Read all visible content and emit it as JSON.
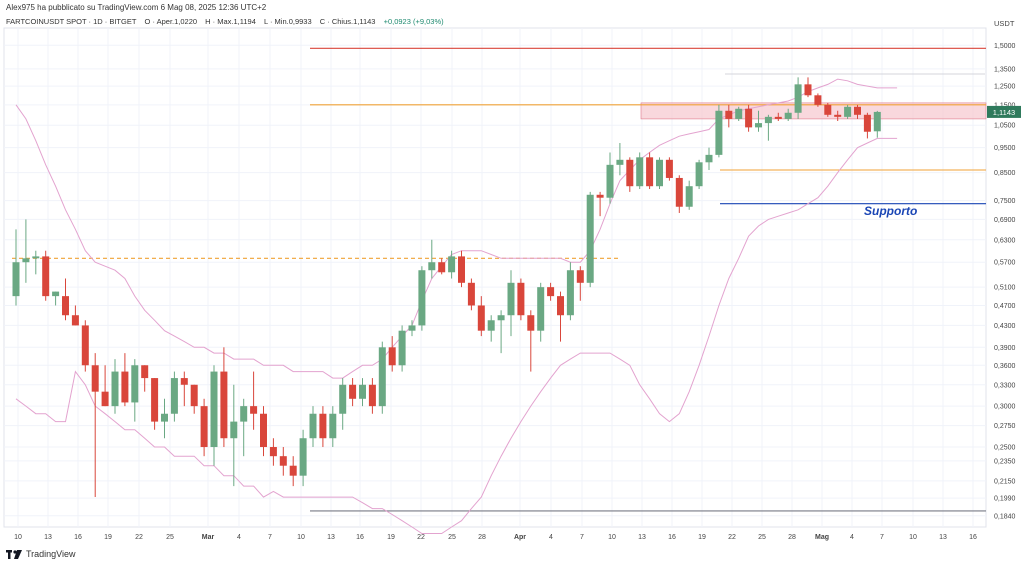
{
  "header": {
    "publisher": "Alex975 ha pubblicato su TradingView.com 6 Mag 08, 2025 12:36 UTC+2",
    "symbol": "FARTCOINUSDT SPOT · 1D · BITGET",
    "open": "O · Aper.1,0220",
    "high": "H · Max.1,1194",
    "low": "L · Min.0,9933",
    "close": "C · Chius.1,1143",
    "change": "+0,0923 (+9,03%)",
    "currency": "USDT"
  },
  "footer": {
    "brand": "TradingView"
  },
  "annotations": {
    "support_label": "Supporto"
  },
  "colors": {
    "up": "#6aa883",
    "down": "#d9463b",
    "band": "#e3a3cf",
    "res_line": "#d9463b",
    "orange_line": "#f0a236",
    "support_line": "#1a46b5",
    "grey_line": "#787b86",
    "zone_fill": "#f7c7ce"
  },
  "chart_data": {
    "type": "candlestick",
    "x_dates": [
      "10",
      "13",
      "16",
      "19",
      "22",
      "25",
      "Mar",
      "4",
      "7",
      "10",
      "13",
      "16",
      "19",
      "22",
      "25",
      "28",
      "Apr",
      "4",
      "7",
      "10",
      "13",
      "16",
      "19",
      "22",
      "25",
      "28",
      "Mag",
      "4",
      "7",
      "10",
      "13",
      "16"
    ],
    "y_ticks": [
      "1,5000",
      "1,3500",
      "1,2500",
      "1,1500",
      "1,0500",
      "0,9500",
      "0,8500",
      "0,7500",
      "0,6900",
      "0,6300",
      "0,5700",
      "0,5100",
      "0,4700",
      "0,4300",
      "0,3900",
      "0,3600",
      "0,3300",
      "0,3000",
      "0,2750",
      "0,2500",
      "0,2350",
      "0,2150",
      "0,1990",
      "0,1840"
    ],
    "current_price": "1,1143",
    "levels": [
      {
        "name": "resistance-top",
        "value": 1.48,
        "color": "#d9463b"
      },
      {
        "name": "orange-upper",
        "value": 1.15,
        "color": "#f0a236"
      },
      {
        "name": "orange-mid",
        "value": 0.86,
        "color": "#f0a236"
      },
      {
        "name": "support",
        "value": 0.74,
        "color": "#1a46b5"
      },
      {
        "name": "orange-dashed",
        "value": 0.58,
        "color": "#f0a236"
      },
      {
        "name": "bottom",
        "value": 0.188,
        "color": "#787b86"
      }
    ],
    "zone": {
      "low": 1.08,
      "high": 1.16
    },
    "candles": [
      {
        "o": 0.49,
        "h": 0.66,
        "l": 0.47,
        "c": 0.57
      },
      {
        "o": 0.57,
        "h": 0.69,
        "l": 0.52,
        "c": 0.58
      },
      {
        "o": 0.58,
        "h": 0.6,
        "l": 0.54,
        "c": 0.585
      },
      {
        "o": 0.585,
        "h": 0.6,
        "l": 0.48,
        "c": 0.49
      },
      {
        "o": 0.49,
        "h": 0.5,
        "l": 0.47,
        "c": 0.5
      },
      {
        "o": 0.49,
        "h": 0.53,
        "l": 0.44,
        "c": 0.45
      },
      {
        "o": 0.45,
        "h": 0.47,
        "l": 0.43,
        "c": 0.43
      },
      {
        "o": 0.43,
        "h": 0.44,
        "l": 0.35,
        "c": 0.36
      },
      {
        "o": 0.36,
        "h": 0.38,
        "l": 0.2,
        "c": 0.32
      },
      {
        "o": 0.32,
        "h": 0.36,
        "l": 0.3,
        "c": 0.3
      },
      {
        "o": 0.3,
        "h": 0.37,
        "l": 0.29,
        "c": 0.35
      },
      {
        "o": 0.35,
        "h": 0.38,
        "l": 0.3,
        "c": 0.305
      },
      {
        "o": 0.305,
        "h": 0.37,
        "l": 0.28,
        "c": 0.36
      },
      {
        "o": 0.36,
        "h": 0.36,
        "l": 0.32,
        "c": 0.34
      },
      {
        "o": 0.34,
        "h": 0.34,
        "l": 0.27,
        "c": 0.28
      },
      {
        "o": 0.28,
        "h": 0.31,
        "l": 0.26,
        "c": 0.29
      },
      {
        "o": 0.29,
        "h": 0.35,
        "l": 0.28,
        "c": 0.34
      },
      {
        "o": 0.34,
        "h": 0.35,
        "l": 0.3,
        "c": 0.33
      },
      {
        "o": 0.33,
        "h": 0.33,
        "l": 0.29,
        "c": 0.3
      },
      {
        "o": 0.3,
        "h": 0.31,
        "l": 0.24,
        "c": 0.25
      },
      {
        "o": 0.25,
        "h": 0.36,
        "l": 0.23,
        "c": 0.35
      },
      {
        "o": 0.35,
        "h": 0.39,
        "l": 0.25,
        "c": 0.26
      },
      {
        "o": 0.26,
        "h": 0.33,
        "l": 0.21,
        "c": 0.28
      },
      {
        "o": 0.28,
        "h": 0.31,
        "l": 0.24,
        "c": 0.3
      },
      {
        "o": 0.3,
        "h": 0.35,
        "l": 0.27,
        "c": 0.29
      },
      {
        "o": 0.29,
        "h": 0.3,
        "l": 0.24,
        "c": 0.25
      },
      {
        "o": 0.25,
        "h": 0.26,
        "l": 0.23,
        "c": 0.24
      },
      {
        "o": 0.24,
        "h": 0.25,
        "l": 0.22,
        "c": 0.23
      },
      {
        "o": 0.23,
        "h": 0.24,
        "l": 0.21,
        "c": 0.22
      },
      {
        "o": 0.22,
        "h": 0.27,
        "l": 0.21,
        "c": 0.26
      },
      {
        "o": 0.26,
        "h": 0.3,
        "l": 0.25,
        "c": 0.29
      },
      {
        "o": 0.29,
        "h": 0.3,
        "l": 0.25,
        "c": 0.26
      },
      {
        "o": 0.26,
        "h": 0.3,
        "l": 0.25,
        "c": 0.29
      },
      {
        "o": 0.29,
        "h": 0.34,
        "l": 0.27,
        "c": 0.33
      },
      {
        "o": 0.33,
        "h": 0.34,
        "l": 0.3,
        "c": 0.31
      },
      {
        "o": 0.31,
        "h": 0.34,
        "l": 0.3,
        "c": 0.33
      },
      {
        "o": 0.33,
        "h": 0.34,
        "l": 0.29,
        "c": 0.3
      },
      {
        "o": 0.3,
        "h": 0.4,
        "l": 0.29,
        "c": 0.39
      },
      {
        "o": 0.39,
        "h": 0.41,
        "l": 0.35,
        "c": 0.36
      },
      {
        "o": 0.36,
        "h": 0.43,
        "l": 0.35,
        "c": 0.42
      },
      {
        "o": 0.42,
        "h": 0.44,
        "l": 0.41,
        "c": 0.43
      },
      {
        "o": 0.43,
        "h": 0.56,
        "l": 0.42,
        "c": 0.55
      },
      {
        "o": 0.55,
        "h": 0.63,
        "l": 0.53,
        "c": 0.57
      },
      {
        "o": 0.57,
        "h": 0.58,
        "l": 0.54,
        "c": 0.545
      },
      {
        "o": 0.545,
        "h": 0.6,
        "l": 0.53,
        "c": 0.585
      },
      {
        "o": 0.585,
        "h": 0.6,
        "l": 0.51,
        "c": 0.52
      },
      {
        "o": 0.52,
        "h": 0.53,
        "l": 0.46,
        "c": 0.47
      },
      {
        "o": 0.47,
        "h": 0.49,
        "l": 0.41,
        "c": 0.42
      },
      {
        "o": 0.42,
        "h": 0.45,
        "l": 0.4,
        "c": 0.44
      },
      {
        "o": 0.44,
        "h": 0.46,
        "l": 0.38,
        "c": 0.45
      },
      {
        "o": 0.45,
        "h": 0.55,
        "l": 0.41,
        "c": 0.52
      },
      {
        "o": 0.52,
        "h": 0.53,
        "l": 0.44,
        "c": 0.45
      },
      {
        "o": 0.45,
        "h": 0.46,
        "l": 0.35,
        "c": 0.42
      },
      {
        "o": 0.42,
        "h": 0.52,
        "l": 0.4,
        "c": 0.51
      },
      {
        "o": 0.51,
        "h": 0.52,
        "l": 0.48,
        "c": 0.49
      },
      {
        "o": 0.49,
        "h": 0.5,
        "l": 0.4,
        "c": 0.45
      },
      {
        "o": 0.45,
        "h": 0.57,
        "l": 0.44,
        "c": 0.55
      },
      {
        "o": 0.55,
        "h": 0.56,
        "l": 0.48,
        "c": 0.52
      },
      {
        "o": 0.52,
        "h": 0.78,
        "l": 0.51,
        "c": 0.77
      },
      {
        "o": 0.77,
        "h": 0.78,
        "l": 0.7,
        "c": 0.76
      },
      {
        "o": 0.76,
        "h": 0.93,
        "l": 0.74,
        "c": 0.88
      },
      {
        "o": 0.88,
        "h": 0.97,
        "l": 0.84,
        "c": 0.9
      },
      {
        "o": 0.9,
        "h": 0.91,
        "l": 0.78,
        "c": 0.8
      },
      {
        "o": 0.8,
        "h": 0.93,
        "l": 0.79,
        "c": 0.91
      },
      {
        "o": 0.91,
        "h": 0.93,
        "l": 0.79,
        "c": 0.8
      },
      {
        "o": 0.8,
        "h": 0.91,
        "l": 0.79,
        "c": 0.9
      },
      {
        "o": 0.9,
        "h": 0.91,
        "l": 0.82,
        "c": 0.83
      },
      {
        "o": 0.83,
        "h": 0.84,
        "l": 0.71,
        "c": 0.73
      },
      {
        "o": 0.73,
        "h": 0.82,
        "l": 0.72,
        "c": 0.8
      },
      {
        "o": 0.8,
        "h": 0.9,
        "l": 0.79,
        "c": 0.89
      },
      {
        "o": 0.89,
        "h": 0.95,
        "l": 0.86,
        "c": 0.92
      },
      {
        "o": 0.92,
        "h": 1.15,
        "l": 0.91,
        "c": 1.12
      },
      {
        "o": 1.12,
        "h": 1.15,
        "l": 1.04,
        "c": 1.08
      },
      {
        "o": 1.08,
        "h": 1.14,
        "l": 1.07,
        "c": 1.13
      },
      {
        "o": 1.13,
        "h": 1.15,
        "l": 1.02,
        "c": 1.04
      },
      {
        "o": 1.04,
        "h": 1.12,
        "l": 1.02,
        "c": 1.06
      },
      {
        "o": 1.06,
        "h": 1.1,
        "l": 0.98,
        "c": 1.09
      },
      {
        "o": 1.09,
        "h": 1.11,
        "l": 1.07,
        "c": 1.08
      },
      {
        "o": 1.08,
        "h": 1.13,
        "l": 1.07,
        "c": 1.11
      },
      {
        "o": 1.11,
        "h": 1.3,
        "l": 1.08,
        "c": 1.26
      },
      {
        "o": 1.26,
        "h": 1.3,
        "l": 1.19,
        "c": 1.2
      },
      {
        "o": 1.2,
        "h": 1.21,
        "l": 1.14,
        "c": 1.15
      },
      {
        "o": 1.15,
        "h": 1.16,
        "l": 1.09,
        "c": 1.1
      },
      {
        "o": 1.1,
        "h": 1.12,
        "l": 1.07,
        "c": 1.09
      },
      {
        "o": 1.09,
        "h": 1.15,
        "l": 1.08,
        "c": 1.14
      },
      {
        "o": 1.14,
        "h": 1.15,
        "l": 1.08,
        "c": 1.1
      },
      {
        "o": 1.1,
        "h": 1.11,
        "l": 0.99,
        "c": 1.02
      },
      {
        "o": 1.022,
        "h": 1.1194,
        "l": 0.9933,
        "c": 1.1143
      }
    ],
    "bollinger_upper": [
      1.15,
      1.08,
      0.98,
      0.88,
      0.8,
      0.72,
      0.66,
      0.6,
      0.57,
      0.56,
      0.55,
      0.53,
      0.49,
      0.46,
      0.44,
      0.42,
      0.41,
      0.4,
      0.39,
      0.39,
      0.38,
      0.38,
      0.37,
      0.37,
      0.37,
      0.36,
      0.36,
      0.36,
      0.35,
      0.35,
      0.35,
      0.35,
      0.34,
      0.34,
      0.35,
      0.36,
      0.36,
      0.37,
      0.39,
      0.41,
      0.43,
      0.48,
      0.53,
      0.56,
      0.59,
      0.6,
      0.6,
      0.6,
      0.59,
      0.58,
      0.58,
      0.58,
      0.58,
      0.58,
      0.58,
      0.58,
      0.57,
      0.57,
      0.6,
      0.66,
      0.74,
      0.82,
      0.86,
      0.9,
      0.93,
      0.96,
      0.98,
      1.0,
      1.01,
      1.02,
      1.03,
      1.08,
      1.1,
      1.12,
      1.13,
      1.14,
      1.15,
      1.16,
      1.17,
      1.19,
      1.22,
      1.24,
      1.26,
      1.29,
      1.28,
      1.26,
      1.25,
      1.24,
      1.24,
      1.24
    ],
    "bollinger_lower": [
      0.31,
      0.3,
      0.29,
      0.29,
      0.28,
      0.28,
      0.35,
      0.33,
      0.3,
      0.29,
      0.28,
      0.27,
      0.27,
      0.26,
      0.25,
      0.25,
      0.24,
      0.24,
      0.24,
      0.23,
      0.23,
      0.22,
      0.22,
      0.21,
      0.21,
      0.2,
      0.205,
      0.2,
      0.2,
      0.2,
      0.2,
      0.2,
      0.2,
      0.2,
      0.2,
      0.195,
      0.19,
      0.19,
      0.185,
      0.18,
      0.175,
      0.17,
      0.17,
      0.17,
      0.175,
      0.18,
      0.19,
      0.2,
      0.22,
      0.24,
      0.26,
      0.28,
      0.3,
      0.32,
      0.34,
      0.36,
      0.37,
      0.38,
      0.38,
      0.38,
      0.38,
      0.37,
      0.36,
      0.33,
      0.31,
      0.29,
      0.28,
      0.29,
      0.32,
      0.36,
      0.41,
      0.47,
      0.53,
      0.58,
      0.64,
      0.67,
      0.69,
      0.7,
      0.71,
      0.72,
      0.74,
      0.76,
      0.8,
      0.85,
      0.9,
      0.95,
      0.97,
      0.99,
      0.99,
      0.99
    ]
  }
}
